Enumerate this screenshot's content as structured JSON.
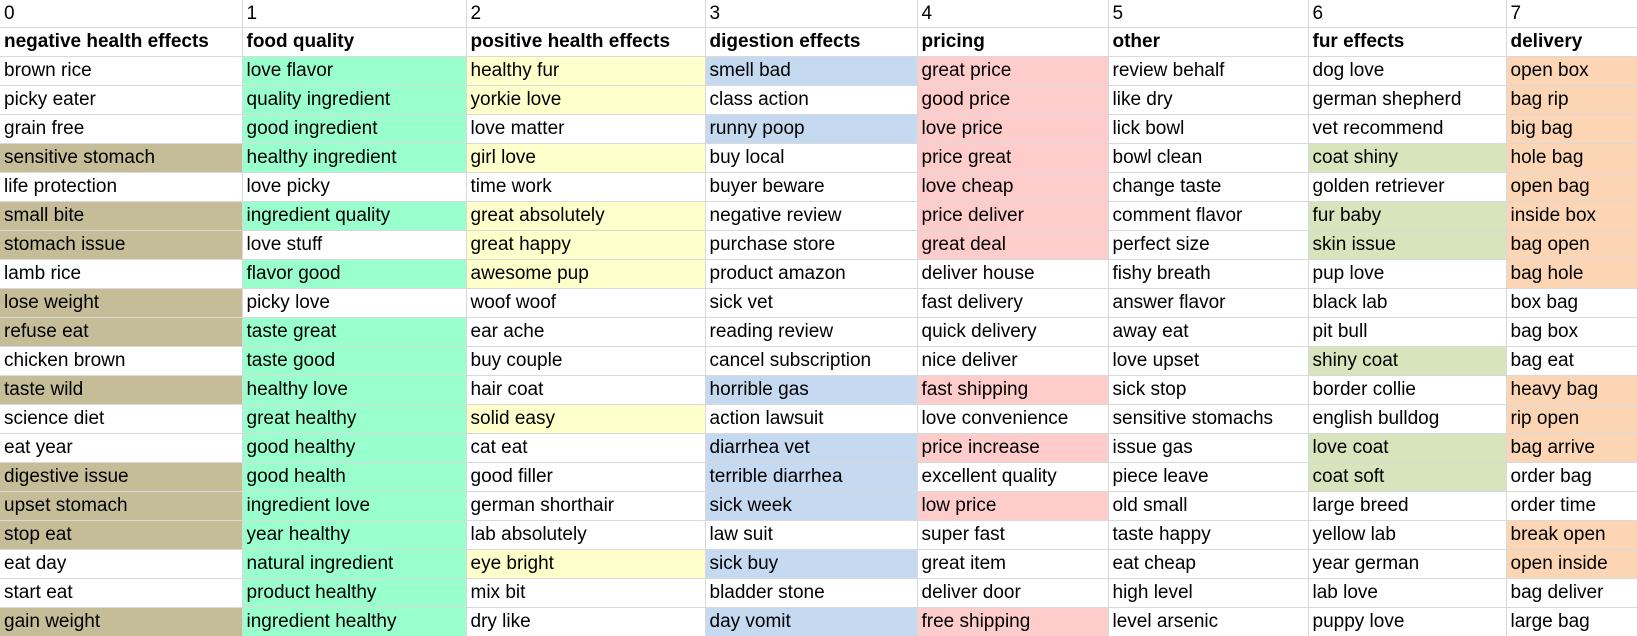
{
  "colors": {
    "negative_health": "#c4bd97",
    "food_quality": "#99ffcc",
    "positive_health": "#ffffcc",
    "digestion": "#c5d9f1",
    "pricing": "#ffcccc",
    "fur": "#d8e4bc",
    "delivery": "#fcd5b4",
    "gridline": "#d9d9d9"
  },
  "table": {
    "indices": [
      "0",
      "1",
      "2",
      "3",
      "4",
      "5",
      "6",
      "7"
    ],
    "headers": [
      "negative health effects",
      "food quality",
      "positive health effects",
      "digestion effects",
      "pricing",
      "other",
      "fur effects",
      "delivery"
    ],
    "rows": [
      [
        {
          "text": "brown rice",
          "hl": false
        },
        {
          "text": "love flavor",
          "hl": true
        },
        {
          "text": "healthy fur",
          "hl": true
        },
        {
          "text": "smell bad",
          "hl": true
        },
        {
          "text": "great price",
          "hl": true
        },
        {
          "text": "review behalf",
          "hl": false
        },
        {
          "text": "dog love",
          "hl": false
        },
        {
          "text": "open box",
          "hl": true
        }
      ],
      [
        {
          "text": "picky eater",
          "hl": false
        },
        {
          "text": "quality ingredient",
          "hl": true
        },
        {
          "text": "yorkie love",
          "hl": true
        },
        {
          "text": "class action",
          "hl": false
        },
        {
          "text": "good price",
          "hl": true
        },
        {
          "text": "like dry",
          "hl": false
        },
        {
          "text": "german shepherd",
          "hl": false
        },
        {
          "text": "bag rip",
          "hl": true
        }
      ],
      [
        {
          "text": "grain free",
          "hl": false
        },
        {
          "text": "good ingredient",
          "hl": true
        },
        {
          "text": "love matter",
          "hl": false
        },
        {
          "text": "runny poop",
          "hl": true
        },
        {
          "text": "love price",
          "hl": true
        },
        {
          "text": "lick bowl",
          "hl": false
        },
        {
          "text": "vet recommend",
          "hl": false
        },
        {
          "text": "big bag",
          "hl": true
        }
      ],
      [
        {
          "text": "sensitive stomach",
          "hl": true
        },
        {
          "text": "healthy ingredient",
          "hl": true
        },
        {
          "text": "girl love",
          "hl": true
        },
        {
          "text": "buy local",
          "hl": false
        },
        {
          "text": "price great",
          "hl": true
        },
        {
          "text": "bowl clean",
          "hl": false
        },
        {
          "text": "coat shiny",
          "hl": true
        },
        {
          "text": "hole bag",
          "hl": true
        }
      ],
      [
        {
          "text": "life protection",
          "hl": false
        },
        {
          "text": "love picky",
          "hl": false
        },
        {
          "text": "time work",
          "hl": false
        },
        {
          "text": "buyer beware",
          "hl": false
        },
        {
          "text": "love cheap",
          "hl": true
        },
        {
          "text": "change taste",
          "hl": false
        },
        {
          "text": "golden retriever",
          "hl": false
        },
        {
          "text": "open bag",
          "hl": true
        }
      ],
      [
        {
          "text": "small bite",
          "hl": true
        },
        {
          "text": "ingredient quality",
          "hl": true
        },
        {
          "text": "great absolutely",
          "hl": true
        },
        {
          "text": "negative review",
          "hl": false
        },
        {
          "text": "price deliver",
          "hl": true
        },
        {
          "text": "comment flavor",
          "hl": false
        },
        {
          "text": "fur baby",
          "hl": true
        },
        {
          "text": "inside box",
          "hl": true
        }
      ],
      [
        {
          "text": "stomach issue",
          "hl": true
        },
        {
          "text": "love stuff",
          "hl": false
        },
        {
          "text": "great happy",
          "hl": true
        },
        {
          "text": "purchase store",
          "hl": false
        },
        {
          "text": "great deal",
          "hl": true
        },
        {
          "text": "perfect size",
          "hl": false
        },
        {
          "text": "skin issue",
          "hl": true
        },
        {
          "text": "bag open",
          "hl": true
        }
      ],
      [
        {
          "text": "lamb rice",
          "hl": false
        },
        {
          "text": "flavor good",
          "hl": true
        },
        {
          "text": "awesome pup",
          "hl": true
        },
        {
          "text": "product amazon",
          "hl": false
        },
        {
          "text": "deliver house",
          "hl": false
        },
        {
          "text": "fishy breath",
          "hl": false
        },
        {
          "text": "pup love",
          "hl": false
        },
        {
          "text": "bag hole",
          "hl": true
        }
      ],
      [
        {
          "text": "lose weight",
          "hl": true
        },
        {
          "text": "picky love",
          "hl": false
        },
        {
          "text": "woof woof",
          "hl": false
        },
        {
          "text": "sick vet",
          "hl": false
        },
        {
          "text": "fast delivery",
          "hl": false
        },
        {
          "text": "answer flavor",
          "hl": false
        },
        {
          "text": "black lab",
          "hl": false
        },
        {
          "text": "box bag",
          "hl": false
        }
      ],
      [
        {
          "text": "refuse eat",
          "hl": true
        },
        {
          "text": "taste great",
          "hl": true
        },
        {
          "text": "ear ache",
          "hl": false
        },
        {
          "text": "reading review",
          "hl": false
        },
        {
          "text": "quick delivery",
          "hl": false
        },
        {
          "text": "away eat",
          "hl": false
        },
        {
          "text": "pit bull",
          "hl": false
        },
        {
          "text": "bag box",
          "hl": false
        }
      ],
      [
        {
          "text": "chicken brown",
          "hl": false
        },
        {
          "text": "taste good",
          "hl": true
        },
        {
          "text": "buy couple",
          "hl": false
        },
        {
          "text": "cancel subscription",
          "hl": false
        },
        {
          "text": "nice deliver",
          "hl": false
        },
        {
          "text": "love upset",
          "hl": false
        },
        {
          "text": "shiny coat",
          "hl": true
        },
        {
          "text": "bag eat",
          "hl": false
        }
      ],
      [
        {
          "text": "taste wild",
          "hl": true
        },
        {
          "text": "healthy love",
          "hl": true
        },
        {
          "text": "hair coat",
          "hl": false
        },
        {
          "text": "horrible gas",
          "hl": true
        },
        {
          "text": "fast shipping",
          "hl": true
        },
        {
          "text": "sick stop",
          "hl": false
        },
        {
          "text": "border collie",
          "hl": false
        },
        {
          "text": "heavy bag",
          "hl": true
        }
      ],
      [
        {
          "text": "science diet",
          "hl": false
        },
        {
          "text": "great healthy",
          "hl": true
        },
        {
          "text": "solid easy",
          "hl": true
        },
        {
          "text": "action lawsuit",
          "hl": false
        },
        {
          "text": "love convenience",
          "hl": false
        },
        {
          "text": "sensitive stomachs",
          "hl": false
        },
        {
          "text": "english bulldog",
          "hl": false
        },
        {
          "text": "rip open",
          "hl": true
        }
      ],
      [
        {
          "text": "eat year",
          "hl": false
        },
        {
          "text": "good healthy",
          "hl": true
        },
        {
          "text": "cat eat",
          "hl": false
        },
        {
          "text": "diarrhea vet",
          "hl": true
        },
        {
          "text": "price increase",
          "hl": true
        },
        {
          "text": "issue gas",
          "hl": false
        },
        {
          "text": "love coat",
          "hl": true
        },
        {
          "text": "bag arrive",
          "hl": true
        }
      ],
      [
        {
          "text": "digestive issue",
          "hl": true
        },
        {
          "text": "good health",
          "hl": true
        },
        {
          "text": "good filler",
          "hl": false
        },
        {
          "text": "terrible diarrhea",
          "hl": true
        },
        {
          "text": "excellent quality",
          "hl": false
        },
        {
          "text": "piece leave",
          "hl": false
        },
        {
          "text": "coat soft",
          "hl": true
        },
        {
          "text": "order bag",
          "hl": false
        }
      ],
      [
        {
          "text": "upset stomach",
          "hl": true
        },
        {
          "text": "ingredient love",
          "hl": true
        },
        {
          "text": "german shorthair",
          "hl": false
        },
        {
          "text": "sick week",
          "hl": true
        },
        {
          "text": "low price",
          "hl": true
        },
        {
          "text": "old small",
          "hl": false
        },
        {
          "text": "large breed",
          "hl": false
        },
        {
          "text": "order time",
          "hl": false
        }
      ],
      [
        {
          "text": "stop eat",
          "hl": true
        },
        {
          "text": "year healthy",
          "hl": true
        },
        {
          "text": "lab absolutely",
          "hl": false
        },
        {
          "text": "law suit",
          "hl": false
        },
        {
          "text": "super fast",
          "hl": false
        },
        {
          "text": "taste happy",
          "hl": false
        },
        {
          "text": "yellow lab",
          "hl": false
        },
        {
          "text": "break open",
          "hl": true
        }
      ],
      [
        {
          "text": "eat day",
          "hl": false
        },
        {
          "text": "natural ingredient",
          "hl": true
        },
        {
          "text": "eye bright",
          "hl": true
        },
        {
          "text": "sick buy",
          "hl": true
        },
        {
          "text": "great item",
          "hl": false
        },
        {
          "text": "eat cheap",
          "hl": false
        },
        {
          "text": "year german",
          "hl": false
        },
        {
          "text": "open inside",
          "hl": true
        }
      ],
      [
        {
          "text": "start eat",
          "hl": false
        },
        {
          "text": "product healthy",
          "hl": true
        },
        {
          "text": "mix bit",
          "hl": false
        },
        {
          "text": "bladder stone",
          "hl": false
        },
        {
          "text": "deliver door",
          "hl": false
        },
        {
          "text": "high level",
          "hl": false
        },
        {
          "text": "lab love",
          "hl": false
        },
        {
          "text": "bag deliver",
          "hl": false
        }
      ],
      [
        {
          "text": "gain weight",
          "hl": true
        },
        {
          "text": "ingredient healthy",
          "hl": true
        },
        {
          "text": "dry like",
          "hl": false
        },
        {
          "text": "day vomit",
          "hl": true
        },
        {
          "text": "free shipping",
          "hl": true
        },
        {
          "text": "level arsenic",
          "hl": false
        },
        {
          "text": "puppy love",
          "hl": false
        },
        {
          "text": "large bag",
          "hl": false
        }
      ]
    ]
  }
}
